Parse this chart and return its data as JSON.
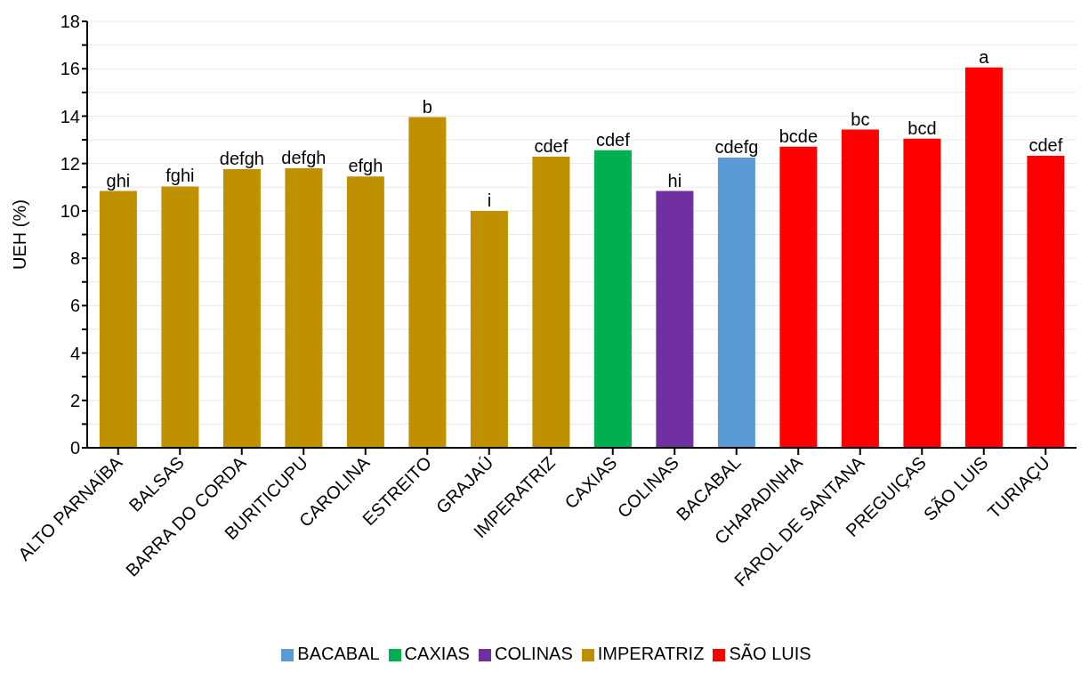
{
  "chart_data": {
    "type": "bar",
    "ylabel": "UEH (%)",
    "categories": [
      "ALTO PARNAÍBA",
      "BALSAS",
      "BARRA DO CORDA",
      "BURITICUPU",
      "CAROLINA",
      "ESTREITO",
      "GRAJAÚ",
      "IMPERATRIZ",
      "CAXIAS",
      "COLINAS",
      "BACABAL",
      "CHAPADINHA",
      "FAROL DE SANTANA",
      "PREGUIÇAS",
      "SÃO LUIS",
      "TURIAÇU"
    ],
    "series": [
      {
        "name": "IMPERATRIZ",
        "color": "#bf9000",
        "values": [
          10.84,
          11.03,
          11.76,
          11.8,
          11.45,
          13.96,
          10.0,
          12.29,
          null,
          null,
          null,
          null,
          null,
          null,
          null,
          null
        ],
        "value_labels": [
          "ghi",
          "fghi",
          "defgh",
          "defgh",
          "efgh",
          "b",
          "i",
          "cdef",
          null,
          null,
          null,
          null,
          null,
          null,
          null,
          null
        ]
      },
      {
        "name": "CAXIAS",
        "color": "#00b050",
        "values": [
          null,
          null,
          null,
          null,
          null,
          null,
          null,
          null,
          12.56,
          null,
          null,
          null,
          null,
          null,
          null,
          null
        ],
        "value_labels": [
          null,
          null,
          null,
          null,
          null,
          null,
          null,
          null,
          "cdef",
          null,
          null,
          null,
          null,
          null,
          null,
          null
        ]
      },
      {
        "name": "COLINAS",
        "color": "#7030a0",
        "values": [
          null,
          null,
          null,
          null,
          null,
          null,
          null,
          null,
          null,
          10.84,
          null,
          null,
          null,
          null,
          null,
          null
        ],
        "value_labels": [
          null,
          null,
          null,
          null,
          null,
          null,
          null,
          null,
          null,
          "hi",
          null,
          null,
          null,
          null,
          null,
          null
        ]
      },
      {
        "name": "BACABAL",
        "color": "#5b9bd5",
        "values": [
          null,
          null,
          null,
          null,
          null,
          null,
          null,
          null,
          null,
          null,
          12.25,
          null,
          null,
          null,
          null,
          null
        ],
        "value_labels": [
          null,
          null,
          null,
          null,
          null,
          null,
          null,
          null,
          null,
          null,
          "cdefg",
          null,
          null,
          null,
          null,
          null
        ]
      },
      {
        "name": "SÃO LUIS",
        "color": "#ff0000",
        "values": [
          null,
          null,
          null,
          null,
          null,
          null,
          null,
          null,
          null,
          null,
          null,
          12.71,
          13.43,
          13.05,
          16.06,
          12.33
        ],
        "value_labels": [
          null,
          null,
          null,
          null,
          null,
          null,
          null,
          null,
          null,
          null,
          null,
          "bcde",
          "bc",
          "bcd",
          "a",
          "cdef"
        ]
      }
    ],
    "stacked": true,
    "ylim": [
      0,
      18
    ],
    "yticks": [
      0,
      {
        "value": 1,
        "label": null
      },
      2,
      {
        "value": 3,
        "label": null
      },
      4,
      {
        "value": 5,
        "label": null
      },
      6,
      {
        "value": 7,
        "label": null
      },
      8,
      {
        "value": 9,
        "label": null
      },
      10,
      {
        "value": 11,
        "label": null
      },
      12,
      {
        "value": 13,
        "label": null
      },
      14,
      {
        "value": 15,
        "label": null
      },
      16,
      {
        "value": 17,
        "label": null
      },
      18
    ],
    "grid": "y",
    "legend": "bottom"
  }
}
